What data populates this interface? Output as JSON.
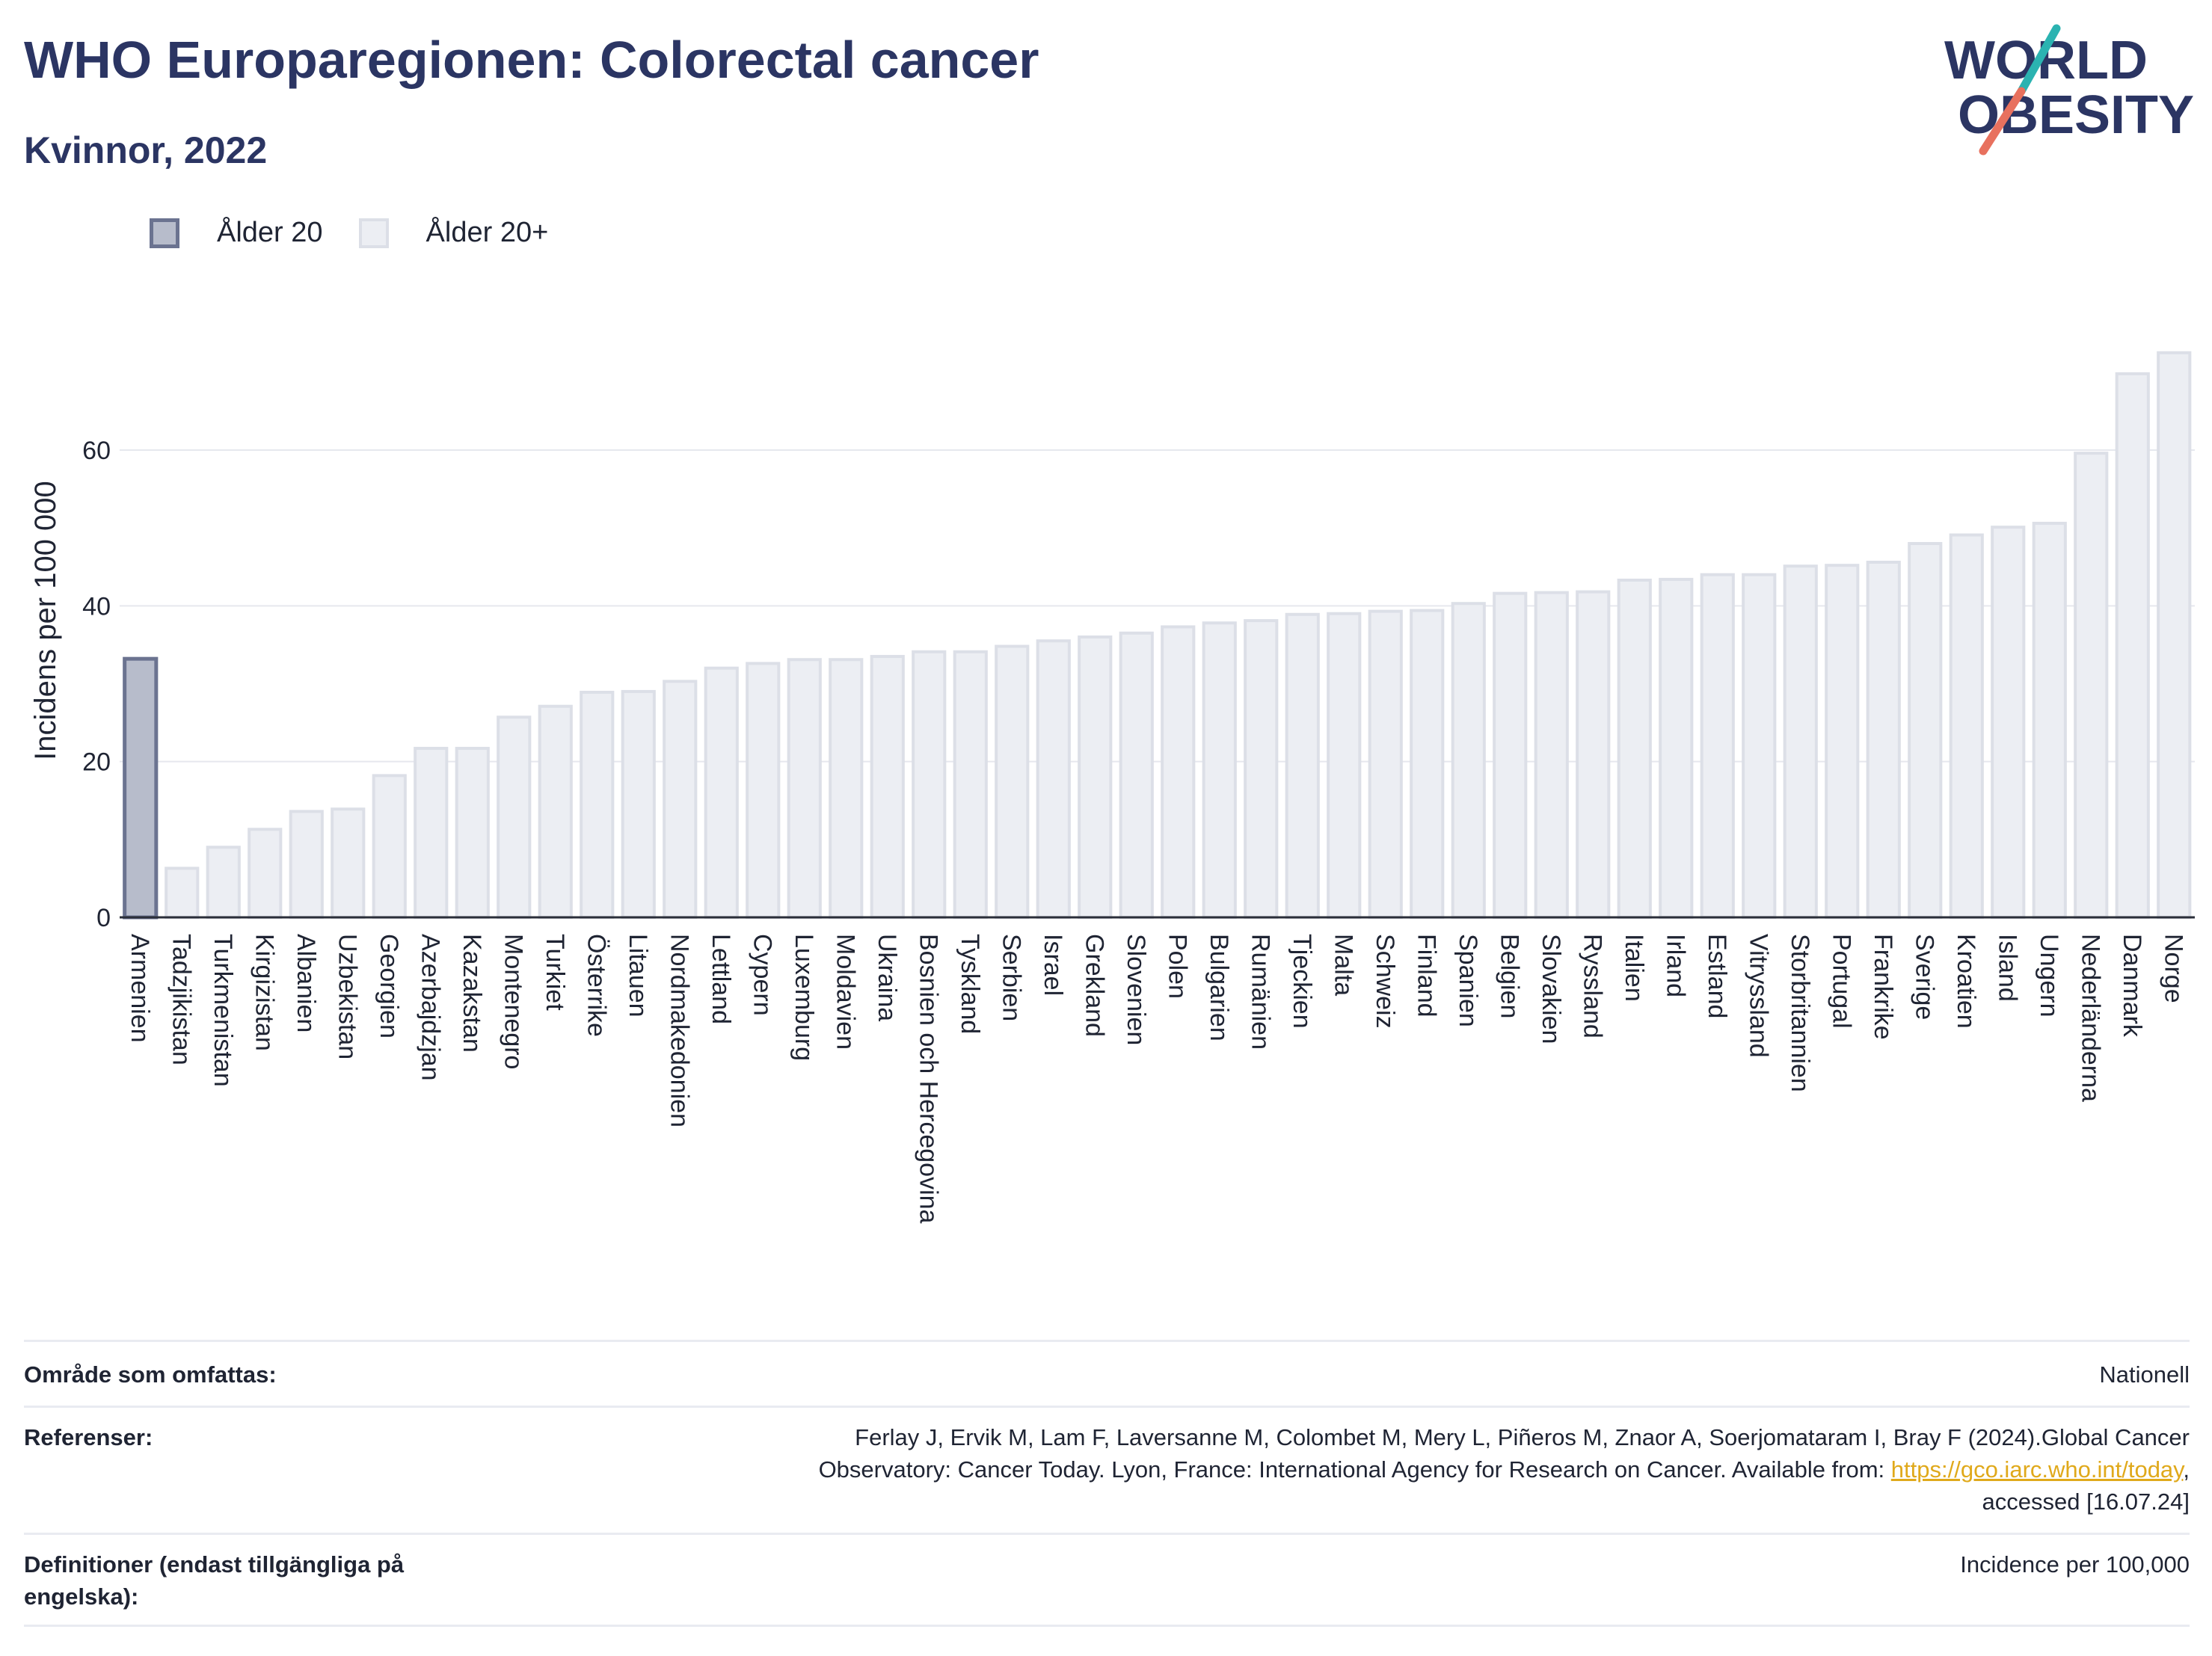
{
  "header": {
    "title": "WHO Europaregionen: Colorectal cancer",
    "subtitle": "Kvinnor, 2022"
  },
  "logo": {
    "line1": "WORLD",
    "line2": "OBESITY",
    "colors": {
      "text": "#2b3563",
      "slash_teal": "#2bb3b1",
      "slash_coral": "#e8715e"
    }
  },
  "legend": {
    "items": [
      {
        "label": "Ålder 20",
        "color": "#b7bccb",
        "border": "#6b7390"
      },
      {
        "label": "Ålder 20+",
        "color": "#eceef3",
        "border": "#dcdfe7"
      }
    ]
  },
  "chart_data": {
    "type": "bar",
    "title": "WHO Europaregionen: Colorectal cancer",
    "subtitle": "Kvinnor, 2022",
    "xlabel": "",
    "ylabel": "Incidens per 100 000",
    "ylim": [
      0,
      75
    ],
    "yticks": [
      0,
      20,
      40,
      60
    ],
    "grid": true,
    "legend_position": "top-left",
    "categories": [
      "Armenien",
      "Tadzjikistan",
      "Turkmenistan",
      "Kirgizistan",
      "Albanien",
      "Uzbekistan",
      "Georgien",
      "Azerbajdzjan",
      "Kazakstan",
      "Montenegro",
      "Turkiet",
      "Österrike",
      "Litauen",
      "Nordmakedonien",
      "Lettland",
      "Cypern",
      "Luxemburg",
      "Moldavien",
      "Ukraina",
      "Bosnien och Hercegovina",
      "Tyskland",
      "Serbien",
      "Israel",
      "Grekland",
      "Slovenien",
      "Polen",
      "Bulgarien",
      "Rumänien",
      "Tjeckien",
      "Malta",
      "Schweiz",
      "Finland",
      "Spanien",
      "Belgien",
      "Slovakien",
      "Ryssland",
      "Italien",
      "Irland",
      "Estland",
      "Vitryssland",
      "Storbritannien",
      "Portugal",
      "Frankrike",
      "Sverige",
      "Kroatien",
      "Island",
      "Ungern",
      "Nederländerna",
      "Danmark",
      "Norge"
    ],
    "values": [
      33.2,
      6.3,
      9.0,
      11.3,
      13.6,
      13.9,
      18.2,
      21.7,
      21.7,
      25.7,
      27.1,
      28.9,
      29.0,
      30.3,
      32.0,
      32.6,
      33.1,
      33.1,
      33.5,
      34.1,
      34.1,
      34.8,
      35.5,
      36.0,
      36.5,
      37.3,
      37.8,
      38.1,
      38.9,
      39.0,
      39.3,
      39.4,
      40.3,
      41.6,
      41.7,
      41.8,
      43.3,
      43.4,
      44.0,
      44.0,
      45.1,
      45.2,
      45.6,
      48.0,
      49.1,
      50.1,
      50.6,
      59.6,
      69.8,
      72.5
    ],
    "series_membership": [
      "Ålder 20",
      "Ålder 20+",
      "Ålder 20+",
      "Ålder 20+",
      "Ålder 20+",
      "Ålder 20+",
      "Ålder 20+",
      "Ålder 20+",
      "Ålder 20+",
      "Ålder 20+",
      "Ålder 20+",
      "Ålder 20+",
      "Ålder 20+",
      "Ålder 20+",
      "Ålder 20+",
      "Ålder 20+",
      "Ålder 20+",
      "Ålder 20+",
      "Ålder 20+",
      "Ålder 20+",
      "Ålder 20+",
      "Ålder 20+",
      "Ålder 20+",
      "Ålder 20+",
      "Ålder 20+",
      "Ålder 20+",
      "Ålder 20+",
      "Ålder 20+",
      "Ålder 20+",
      "Ålder 20+",
      "Ålder 20+",
      "Ålder 20+",
      "Ålder 20+",
      "Ålder 20+",
      "Ålder 20+",
      "Ålder 20+",
      "Ålder 20+",
      "Ålder 20+",
      "Ålder 20+",
      "Ålder 20+",
      "Ålder 20+",
      "Ålder 20+",
      "Ålder 20+",
      "Ålder 20+",
      "Ålder 20+",
      "Ålder 20+",
      "Ålder 20+",
      "Ålder 20+",
      "Ålder 20+",
      "Ålder 20+"
    ]
  },
  "footer": {
    "coverage": {
      "label": "Område som omfattas:",
      "value": "Nationell"
    },
    "references": {
      "label": "Referenser:",
      "line1": "Ferlay J, Ervik M, Lam F, Laversanne M, Colombet M, Mery L, Piñeros M, Znaor A, Soerjomataram I, Bray F (2024).Global Cancer",
      "line2_prefix": "Observatory: Cancer Today. Lyon, France: International Agency for Research on Cancer. Available from: ",
      "link_text": "https://gco.iarc.who.int/today",
      "line2_suffix": ",",
      "line3": "accessed [16.07.24]"
    },
    "definitions": {
      "label_line1": "Definitioner (endast tillgängliga på",
      "label_line2": "engelska):",
      "value": "Incidence per 100,000"
    }
  }
}
